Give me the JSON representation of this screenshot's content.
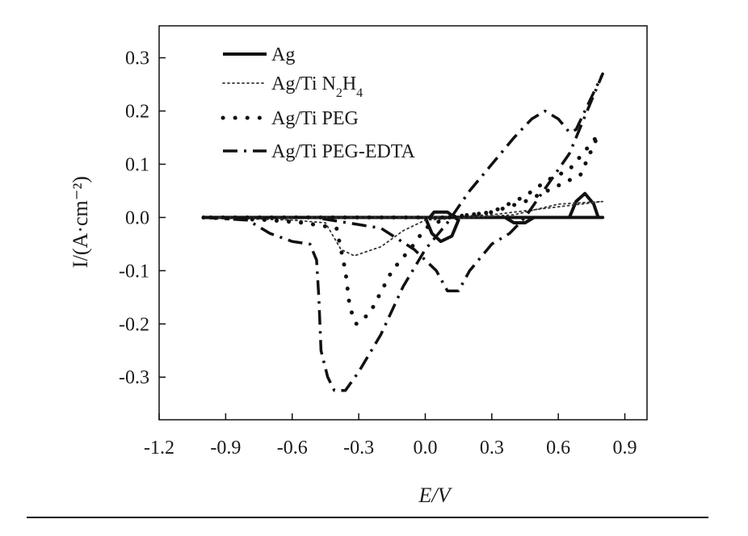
{
  "chart_data": {
    "type": "line",
    "title": "",
    "xlabel": "E/V",
    "ylabel": "I/(A·cm⁻²)",
    "xlim": [
      -1.2,
      1.0
    ],
    "ylim": [
      -0.38,
      0.36
    ],
    "xticks": [
      -1.2,
      -0.9,
      -0.6,
      -0.3,
      0.0,
      0.3,
      0.6,
      0.9
    ],
    "yticks": [
      -0.3,
      -0.2,
      -0.1,
      0.0,
      0.1,
      0.2,
      0.3
    ],
    "xtick_labels": [
      "-1.2",
      "-0.9",
      "-0.6",
      "-0.3",
      "0.0",
      "0.3",
      "0.6",
      "0.9"
    ],
    "ytick_labels": [
      "-0.3",
      "-0.2",
      "-0.1",
      "0.0",
      "0.1",
      "0.2",
      "0.3"
    ],
    "legend_position": "top-left",
    "grid": false,
    "series": [
      {
        "name": "Ag",
        "style": "solid",
        "color": "#111111",
        "points": [
          [
            -1.0,
            0.0
          ],
          [
            0.0,
            0.0
          ],
          [
            0.03,
            -0.03
          ],
          [
            0.07,
            -0.045
          ],
          [
            0.12,
            -0.035
          ],
          [
            0.15,
            -0.005
          ],
          [
            0.1,
            0.01
          ],
          [
            0.04,
            0.01
          ],
          [
            0.02,
            0.0
          ],
          [
            0.2,
            0.0
          ],
          [
            0.36,
            0.0
          ],
          [
            0.4,
            -0.01
          ],
          [
            0.45,
            -0.01
          ],
          [
            0.49,
            0.0
          ],
          [
            0.65,
            0.0
          ],
          [
            0.68,
            0.03
          ],
          [
            0.72,
            0.045
          ],
          [
            0.76,
            0.025
          ],
          [
            0.78,
            0.0
          ],
          [
            0.8,
            0.0
          ],
          [
            0.7,
            0.0
          ],
          [
            0.4,
            0.0
          ],
          [
            0.0,
            0.0
          ],
          [
            -1.0,
            0.0
          ]
        ]
      },
      {
        "name": "Ag/Ti N2H4",
        "style": "dotted",
        "color": "#333333",
        "points": [
          [
            -1.0,
            0.0
          ],
          [
            -0.6,
            -0.005
          ],
          [
            -0.45,
            -0.01
          ],
          [
            -0.38,
            -0.06
          ],
          [
            -0.32,
            -0.072
          ],
          [
            -0.2,
            -0.055
          ],
          [
            -0.1,
            -0.025
          ],
          [
            0.0,
            -0.005
          ],
          [
            0.2,
            0.0
          ],
          [
            0.4,
            0.005
          ],
          [
            0.6,
            0.025
          ],
          [
            0.8,
            0.03
          ],
          [
            0.6,
            0.02
          ],
          [
            0.3,
            0.005
          ],
          [
            0.0,
            0.0
          ],
          [
            -1.0,
            0.0
          ]
        ]
      },
      {
        "name": "Ag/Ti PEG",
        "style": "sparse-dotted",
        "color": "#111111",
        "points": [
          [
            -1.0,
            0.0
          ],
          [
            -0.7,
            -0.005
          ],
          [
            -0.55,
            -0.01
          ],
          [
            -0.4,
            -0.02
          ],
          [
            -0.36,
            -0.1
          ],
          [
            -0.34,
            -0.17
          ],
          [
            -0.31,
            -0.2
          ],
          [
            -0.25,
            -0.18
          ],
          [
            -0.15,
            -0.1
          ],
          [
            -0.05,
            -0.05
          ],
          [
            0.0,
            -0.02
          ],
          [
            0.1,
            0.0
          ],
          [
            0.3,
            0.01
          ],
          [
            0.45,
            0.04
          ],
          [
            0.55,
            0.07
          ],
          [
            0.65,
            0.09
          ],
          [
            0.78,
            0.155
          ],
          [
            0.7,
            0.08
          ],
          [
            0.55,
            0.05
          ],
          [
            0.45,
            0.03
          ],
          [
            0.3,
            0.01
          ],
          [
            0.1,
            0.0
          ],
          [
            -1.0,
            0.0
          ]
        ]
      },
      {
        "name": "Ag/Ti PEG-EDTA",
        "style": "dash-dot",
        "color": "#111111",
        "points": [
          [
            -1.0,
            0.0
          ],
          [
            -0.8,
            -0.005
          ],
          [
            -0.7,
            -0.03
          ],
          [
            -0.6,
            -0.045
          ],
          [
            -0.52,
            -0.05
          ],
          [
            -0.49,
            -0.08
          ],
          [
            -0.48,
            -0.15
          ],
          [
            -0.47,
            -0.25
          ],
          [
            -0.44,
            -0.3
          ],
          [
            -0.41,
            -0.325
          ],
          [
            -0.36,
            -0.325
          ],
          [
            -0.3,
            -0.29
          ],
          [
            -0.2,
            -0.22
          ],
          [
            -0.1,
            -0.13
          ],
          [
            0.0,
            -0.06
          ],
          [
            0.1,
            -0.01
          ],
          [
            0.2,
            0.05
          ],
          [
            0.3,
            0.1
          ],
          [
            0.4,
            0.15
          ],
          [
            0.48,
            0.185
          ],
          [
            0.54,
            0.2
          ],
          [
            0.6,
            0.185
          ],
          [
            0.65,
            0.16
          ],
          [
            0.68,
            0.165
          ],
          [
            0.72,
            0.2
          ],
          [
            0.76,
            0.235
          ],
          [
            0.8,
            0.27
          ],
          [
            0.78,
            0.25
          ],
          [
            0.72,
            0.19
          ],
          [
            0.65,
            0.12
          ],
          [
            0.55,
            0.06
          ],
          [
            0.5,
            0.03
          ],
          [
            0.45,
            0.0
          ],
          [
            0.38,
            -0.03
          ],
          [
            0.3,
            -0.05
          ],
          [
            0.2,
            -0.1
          ],
          [
            0.15,
            -0.138
          ],
          [
            0.1,
            -0.138
          ],
          [
            0.05,
            -0.1
          ],
          [
            -0.05,
            -0.06
          ],
          [
            -0.2,
            -0.02
          ],
          [
            -0.5,
            0.0
          ],
          [
            -1.0,
            0.0
          ]
        ]
      }
    ]
  }
}
